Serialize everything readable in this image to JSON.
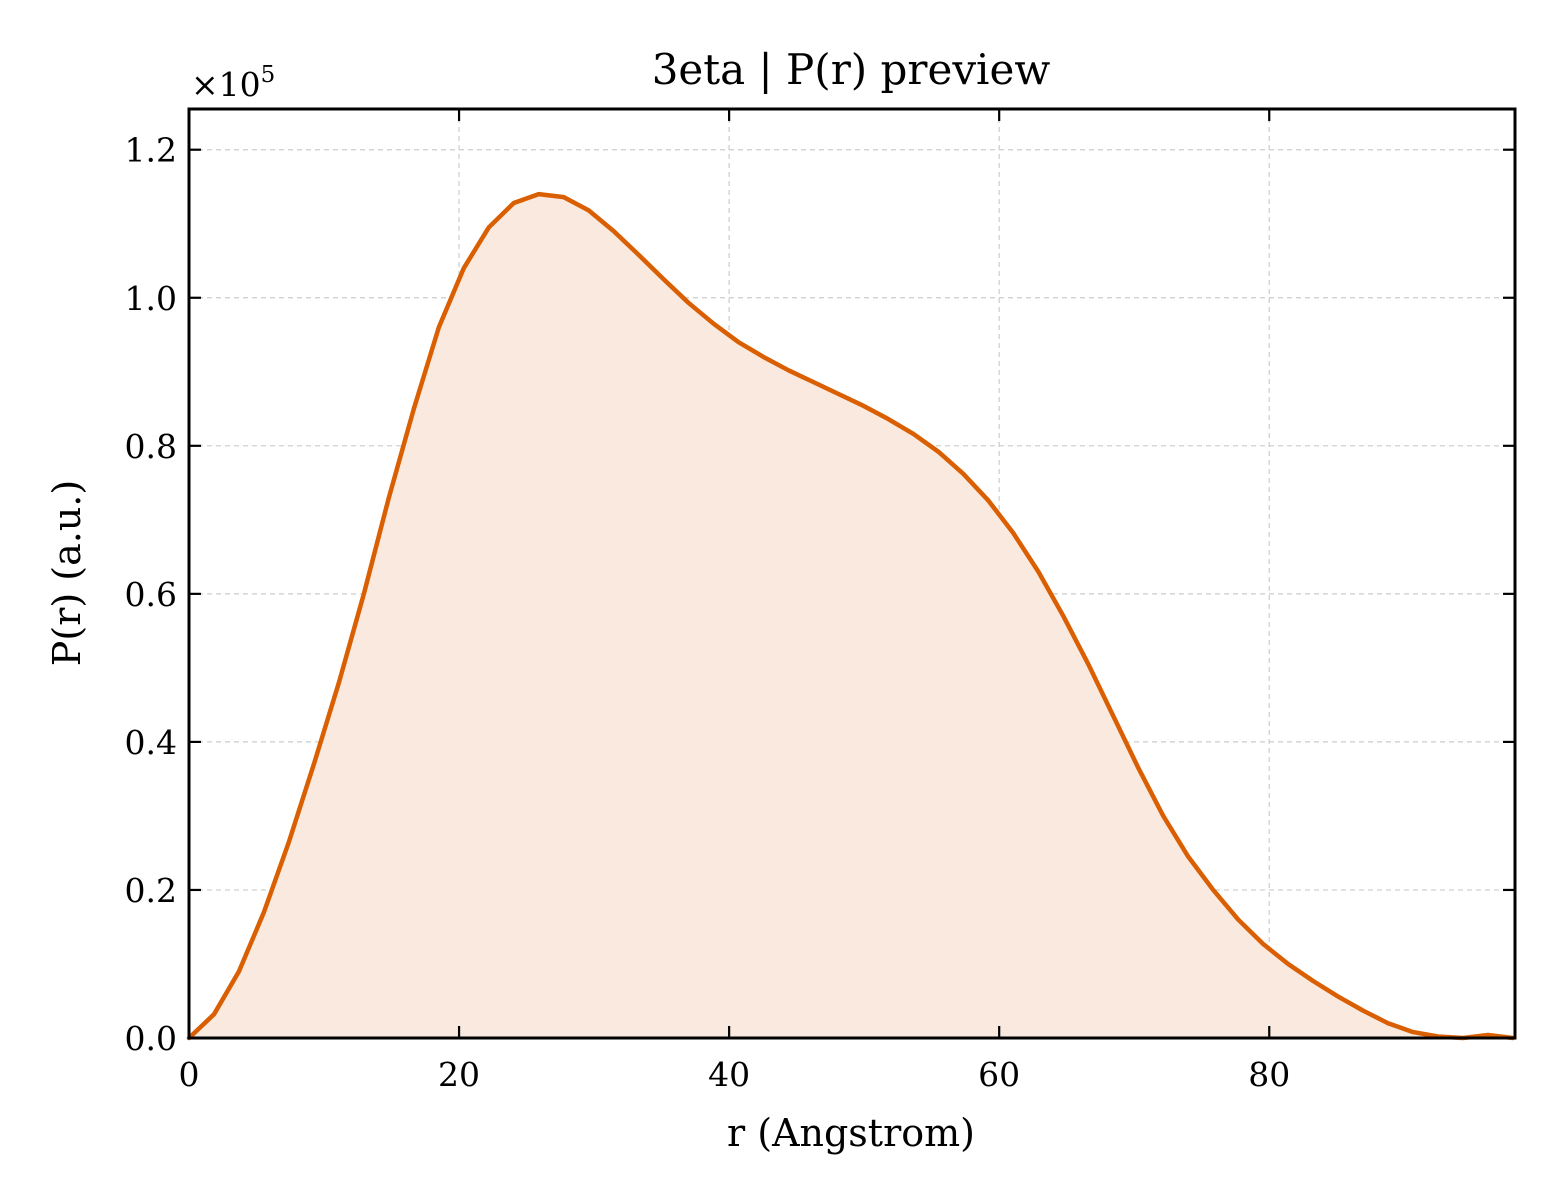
{
  "chart_data": {
    "type": "area",
    "title": "3eta | P(r) preview",
    "xlabel": "r (Angstrom)",
    "ylabel": "P(r) (a.u.)",
    "y_scale_label": "×10",
    "y_scale_exponent": "5",
    "xlim": [
      0,
      98.2
    ],
    "ylim": [
      0,
      1.255
    ],
    "x_ticks": [
      0,
      20,
      40,
      60,
      80
    ],
    "x_tick_labels": [
      "0",
      "20",
      "40",
      "60",
      "80"
    ],
    "y_ticks": [
      0.0,
      0.2,
      0.4,
      0.6,
      0.8,
      1.0,
      1.2
    ],
    "y_tick_labels": [
      "0.0",
      "0.2",
      "0.4",
      "0.6",
      "0.8",
      "1.0",
      "1.2"
    ],
    "grid": true,
    "line_color": "#d95f02",
    "fill_color": "#f9e9de",
    "series": [
      {
        "x": [
          0.0,
          1.85,
          3.7,
          5.55,
          7.4,
          9.25,
          11.1,
          12.95,
          14.8,
          16.65,
          18.5,
          20.35,
          22.2,
          24.05,
          25.9,
          27.75,
          29.6,
          31.45,
          33.3,
          35.15,
          37.0,
          38.85,
          40.7,
          42.55,
          44.4,
          46.25,
          48.1,
          49.95,
          51.8,
          53.65,
          55.5,
          57.35,
          59.2,
          61.05,
          62.9,
          64.75,
          66.6,
          68.45,
          70.3,
          72.15,
          74.0,
          75.85,
          77.7,
          79.55,
          81.4,
          83.25,
          85.1,
          86.95,
          88.8,
          90.65,
          92.5,
          94.35,
          96.2,
          98.05
        ],
        "y": [
          0.0,
          0.032,
          0.09,
          0.17,
          0.265,
          0.37,
          0.48,
          0.6,
          0.73,
          0.85,
          0.96,
          1.04,
          1.095,
          1.128,
          1.14,
          1.136,
          1.118,
          1.09,
          1.058,
          1.025,
          0.993,
          0.965,
          0.94,
          0.92,
          0.902,
          0.886,
          0.87,
          0.854,
          0.836,
          0.816,
          0.792,
          0.762,
          0.726,
          0.682,
          0.63,
          0.57,
          0.505,
          0.435,
          0.365,
          0.3,
          0.245,
          0.2,
          0.16,
          0.127,
          0.1,
          0.077,
          0.056,
          0.037,
          0.02,
          0.008,
          0.002,
          0.0,
          0.004,
          0.0
        ]
      }
    ]
  }
}
